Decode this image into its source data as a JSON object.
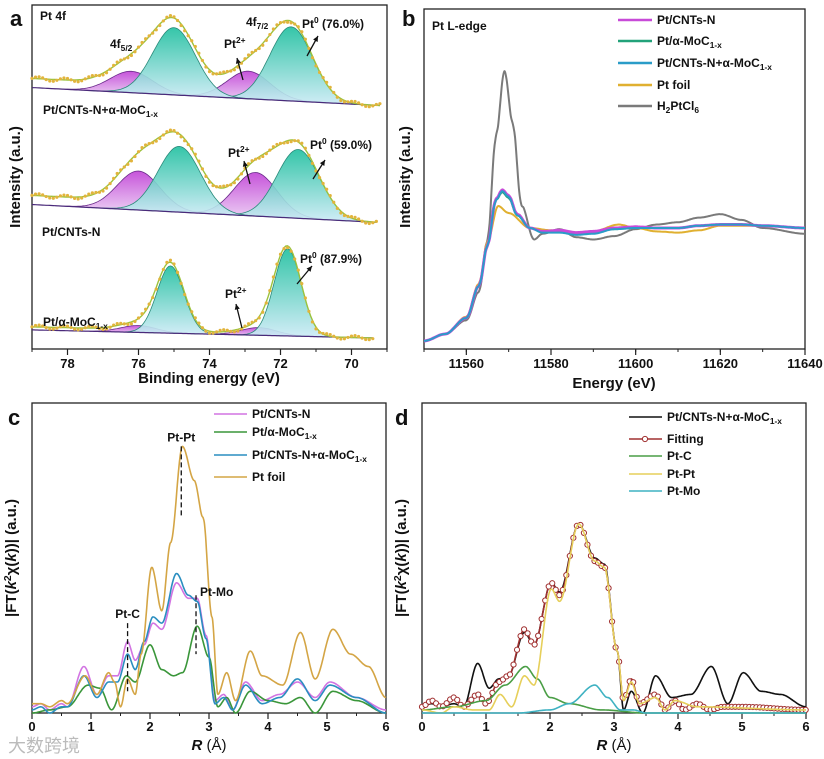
{
  "watermark": "大数跨境",
  "chart_data": [
    {
      "panel": "a",
      "type": "line",
      "title": "Pt 4f",
      "xlabel": "Binding energy (eV)",
      "ylabel": "Intensity (a.u.)",
      "xlim": [
        79,
        69
      ],
      "ylim": [
        -0.2,
        4.3
      ],
      "xticks": [
        78,
        76,
        74,
        72,
        70
      ],
      "peak_labels": {
        "f52": {
          "main": "4f",
          "sub": "5/2"
        },
        "f72": {
          "main": "4f",
          "sub": "7/2"
        }
      },
      "colors": {
        "pt0": "#22c0a8",
        "pt2": "#c24ad6",
        "data": "#e2b43c",
        "envelope": "#9cc23c",
        "baseline": "#4a2a7a"
      },
      "rows": [
        {
          "sample": {
            "main": "Pt/CNTs-N+α-MoC",
            "sub": "1-x"
          },
          "baseline": [
            3.22,
            2.98
          ],
          "shirley": 0.12,
          "xmin": 69.2,
          "pt0": {
            "label": "Pt",
            "sup": "0",
            "pct": " (76.0%)",
            "centers": [
              71.7,
              75.0
            ],
            "heights": [
              0.97,
              0.88
            ],
            "sigma": 0.6
          },
          "pt2": {
            "label": "Pt",
            "sup": "2+",
            "centers": [
              72.9,
              76.2
            ],
            "heights": [
              0.36,
              0.28
            ],
            "sigma": 0.6
          }
        },
        {
          "sample": {
            "main": "Pt/CNTs-N",
            "sub": ""
          },
          "baseline": [
            1.69,
            1.45
          ],
          "shirley": 0.12,
          "xmin": 69.3,
          "pt0": {
            "label": "Pt",
            "sup": "0",
            "pct": " (59.0%)",
            "centers": [
              71.5,
              74.85
            ],
            "heights": [
              0.9,
              0.86
            ],
            "sigma": 0.6
          },
          "pt2": {
            "label": "Pt",
            "sup": "2+",
            "centers": [
              72.7,
              76.0
            ],
            "heights": [
              0.57,
              0.51
            ],
            "sigma": 0.6
          }
        },
        {
          "sample": {
            "main": "Pt/α-MoC",
            "sub": "1-x"
          },
          "baseline": [
            0.05,
            -0.06
          ],
          "shirley": 0.04,
          "xmin": 69.4,
          "pt0": {
            "label": "Pt",
            "sup": "0",
            "pct": " (87.9%)",
            "centers": [
              71.8,
              75.1
            ],
            "heights": [
              1.14,
              0.88
            ],
            "sigma": 0.38
          },
          "pt2": {
            "label": "Pt",
            "sup": "2+",
            "centers": [
              72.6,
              76.0
            ],
            "heights": [
              0.1,
              0.09
            ],
            "sigma": 0.5
          }
        }
      ]
    },
    {
      "panel": "b",
      "type": "line",
      "title": "Pt L-edge",
      "xlabel": "Energy (eV)",
      "ylabel": "Intensity (a.u.)",
      "xlim": [
        11550,
        11640
      ],
      "ylim": [
        -0.05,
        2.9
      ],
      "xticks": [
        11560,
        11580,
        11600,
        11620,
        11640
      ],
      "legend": "top-right",
      "series": [
        {
          "name": {
            "main": "Pt/CNTs-N",
            "sub": ""
          },
          "color": "#c84ad8",
          "x": [
            11550,
            11555,
            11560,
            11563,
            11565,
            11567,
            11568.5,
            11570,
            11572,
            11575,
            11578,
            11582,
            11586,
            11590,
            11595,
            11600,
            11605,
            11610,
            11615,
            11620,
            11625,
            11630,
            11640
          ],
          "y": [
            0.02,
            0.08,
            0.22,
            0.5,
            0.85,
            1.25,
            1.33,
            1.28,
            1.12,
            1.0,
            0.97,
            0.98,
            0.96,
            0.97,
            1.0,
            1.01,
            1.0,
            1.0,
            1.02,
            1.03,
            1.03,
            1.02,
            1.0
          ]
        },
        {
          "name": {
            "main": "Pt/α-MoC",
            "sub": "1-x"
          },
          "color": "#22a27a",
          "x": [
            11550,
            11555,
            11560,
            11563,
            11565,
            11567,
            11568.5,
            11570,
            11572,
            11575,
            11578,
            11582,
            11586,
            11590,
            11595,
            11600,
            11605,
            11610,
            11615,
            11620,
            11625,
            11630,
            11640
          ],
          "y": [
            0.02,
            0.08,
            0.22,
            0.5,
            0.85,
            1.24,
            1.31,
            1.26,
            1.11,
            1.0,
            0.97,
            0.97,
            0.95,
            0.96,
            0.99,
            1.0,
            1.0,
            1.0,
            1.02,
            1.03,
            1.03,
            1.02,
            1.0
          ]
        },
        {
          "name": {
            "main": "Pt/CNTs-N+α-MoC",
            "sub": "1-x"
          },
          "color": "#2a9cc8",
          "x": [
            11550,
            11555,
            11560,
            11563,
            11565,
            11567,
            11568.5,
            11570,
            11572,
            11575,
            11578,
            11582,
            11586,
            11590,
            11595,
            11600,
            11605,
            11610,
            11615,
            11620,
            11625,
            11630,
            11640
          ],
          "y": [
            0.02,
            0.08,
            0.22,
            0.5,
            0.85,
            1.24,
            1.32,
            1.27,
            1.11,
            1.0,
            0.96,
            0.96,
            0.94,
            0.95,
            0.99,
            1.0,
            1.0,
            1.0,
            1.02,
            1.03,
            1.03,
            1.02,
            1.0
          ]
        },
        {
          "name": {
            "main": "Pt foil",
            "sub": ""
          },
          "color": "#e0b030",
          "x": [
            11550,
            11555,
            11560,
            11563,
            11565,
            11567.5,
            11570,
            11575,
            11580,
            11585,
            11590,
            11596,
            11600,
            11605,
            11610,
            11615,
            11620,
            11630,
            11640
          ],
          "y": [
            0.02,
            0.08,
            0.23,
            0.52,
            0.88,
            1.19,
            1.13,
            1.0,
            0.98,
            0.96,
            0.97,
            1.03,
            1.0,
            0.97,
            0.96,
            0.98,
            1.02,
            1.02,
            1.0
          ]
        },
        {
          "name": {
            "main": "H",
            "sub": "2",
            "main2": "PtCl",
            "sub2": "6"
          },
          "color": "#7a7a7a",
          "x": [
            11550,
            11555,
            11560,
            11563,
            11565,
            11567,
            11569,
            11571,
            11573,
            11576,
            11578,
            11582,
            11586,
            11590,
            11595,
            11600,
            11605,
            11610,
            11615,
            11620,
            11625,
            11630,
            11640
          ],
          "y": [
            0.02,
            0.08,
            0.2,
            0.45,
            0.9,
            1.8,
            2.36,
            1.9,
            1.2,
            0.9,
            0.95,
            0.99,
            0.92,
            0.9,
            0.93,
            0.99,
            1.03,
            1.05,
            1.09,
            1.12,
            1.07,
            1.0,
            0.95
          ]
        }
      ]
    },
    {
      "panel": "c",
      "type": "line",
      "xlabel": "R (Å)",
      "ylabel": "|FT(k²χ(k))| (a.u.)",
      "xlim": [
        0,
        6
      ],
      "ylim": [
        0,
        1
      ],
      "xticks": [
        0,
        1,
        2,
        3,
        4,
        5,
        6
      ],
      "legend": "top-right",
      "annotations": [
        {
          "text": "Pt-C",
          "x": 1.62,
          "y_top": 0.29,
          "y_bottom": 0.07
        },
        {
          "text": "Pt-Pt",
          "x": 2.53,
          "y_top": 0.86,
          "y_bottom": 0.63
        },
        {
          "text": "Pt-Mo",
          "x": 2.78,
          "y_top": 0.38,
          "y_bottom": 0.19
        }
      ],
      "series": [
        {
          "name": {
            "main": "Pt/CNTs-N",
            "sub": ""
          },
          "color": "#d274e2",
          "x": [
            0,
            0.15,
            0.3,
            0.5,
            0.6,
            0.88,
            1.1,
            1.3,
            1.45,
            1.62,
            1.75,
            1.9,
            2.05,
            2.2,
            2.45,
            2.65,
            2.8,
            2.95,
            3.1,
            3.25,
            3.4,
            3.62,
            3.9,
            4.2,
            4.5,
            4.8,
            5.05,
            5.5,
            6.0
          ],
          "y": [
            0.02,
            0.03,
            0.01,
            0.03,
            0.02,
            0.15,
            0.06,
            0.12,
            0.12,
            0.23,
            0.17,
            0.22,
            0.29,
            0.27,
            0.42,
            0.37,
            0.37,
            0.25,
            0.04,
            0.06,
            0.01,
            0.1,
            0.04,
            0.06,
            0.1,
            0.05,
            0.1,
            0.05,
            0.01
          ]
        },
        {
          "name": {
            "main": "Pt/α-MoC",
            "sub": "1-x"
          },
          "color": "#3a963a",
          "x": [
            0,
            0.3,
            0.6,
            0.95,
            1.15,
            1.35,
            1.6,
            1.75,
            2.0,
            2.2,
            2.4,
            2.55,
            2.8,
            3.0,
            3.15,
            3.3,
            3.45,
            3.7,
            4.0,
            4.3,
            4.55,
            4.8,
            5.1,
            5.5,
            6.0
          ],
          "y": [
            0.0,
            0.01,
            0.02,
            0.09,
            0.08,
            0.01,
            0.12,
            0.1,
            0.22,
            0.14,
            0.12,
            0.13,
            0.28,
            0.18,
            0.02,
            0.05,
            0.0,
            0.07,
            0.04,
            0.03,
            0.05,
            0.0,
            0.07,
            0.04,
            0.0
          ]
        },
        {
          "name": {
            "main": "Pt/CNTs-N+α-MoC",
            "sub": "1-x"
          },
          "color": "#2a8ec0",
          "x": [
            0,
            0.15,
            0.3,
            0.5,
            0.6,
            0.88,
            1.1,
            1.3,
            1.45,
            1.62,
            1.75,
            1.9,
            2.05,
            2.2,
            2.45,
            2.65,
            2.8,
            2.95,
            3.1,
            3.25,
            3.4,
            3.62,
            3.9,
            4.2,
            4.5,
            4.8,
            5.05,
            5.5,
            6.0
          ],
          "y": [
            0.01,
            0.02,
            0.0,
            0.02,
            0.02,
            0.12,
            0.05,
            0.1,
            0.1,
            0.19,
            0.14,
            0.23,
            0.31,
            0.29,
            0.45,
            0.38,
            0.36,
            0.24,
            0.03,
            0.05,
            0.01,
            0.09,
            0.03,
            0.05,
            0.11,
            0.04,
            0.09,
            0.05,
            0.0
          ]
        },
        {
          "name": {
            "main": "Pt foil",
            "sub": ""
          },
          "color": "#d4a545",
          "x": [
            0,
            0.15,
            0.3,
            0.5,
            0.6,
            0.9,
            1.1,
            1.3,
            1.4,
            1.5,
            1.62,
            1.75,
            1.85,
            2.03,
            2.2,
            2.35,
            2.55,
            2.75,
            2.9,
            3.05,
            3.15,
            3.3,
            3.45,
            3.7,
            3.9,
            4.25,
            4.55,
            4.8,
            5.1,
            5.4,
            5.7,
            6.0
          ],
          "y": [
            0.03,
            0.03,
            0.02,
            0.04,
            0.03,
            0.12,
            0.06,
            0.13,
            0.1,
            0.02,
            0.11,
            0.06,
            0.19,
            0.47,
            0.33,
            0.55,
            0.86,
            0.75,
            0.63,
            0.31,
            0.06,
            0.13,
            0.04,
            0.2,
            0.12,
            0.09,
            0.26,
            0.11,
            0.27,
            0.19,
            0.15,
            0.05
          ]
        }
      ]
    },
    {
      "panel": "d",
      "type": "line",
      "xlabel": "R (Å)",
      "ylabel": "|FT(k²χ(k))| (a.u.)",
      "xlim": [
        0,
        6
      ],
      "ylim": [
        0,
        1
      ],
      "xticks": [
        0,
        1,
        2,
        3,
        4,
        5,
        6
      ],
      "legend": "top-right",
      "series": [
        {
          "name": {
            "main": "Pt/CNTs-N+α-MoC",
            "sub": "1-x"
          },
          "color": "#111111",
          "markers": false,
          "x": [
            0,
            0.15,
            0.3,
            0.5,
            0.65,
            0.87,
            1.05,
            1.2,
            1.35,
            1.6,
            1.75,
            2.02,
            2.15,
            2.45,
            2.7,
            2.85,
            3.05,
            3.15,
            3.27,
            3.45,
            3.65,
            3.9,
            4.2,
            4.52,
            4.78,
            5.02,
            5.3,
            5.6,
            6.0
          ],
          "y": [
            0.02,
            0.03,
            0.02,
            0.03,
            0.02,
            0.16,
            0.08,
            0.11,
            0.12,
            0.26,
            0.22,
            0.42,
            0.39,
            0.61,
            0.5,
            0.48,
            0.2,
            0.01,
            0.07,
            0.0,
            0.12,
            0.05,
            0.06,
            0.15,
            0.03,
            0.13,
            0.07,
            0.06,
            0.02
          ]
        },
        {
          "name": {
            "main": "Fitting",
            "sub": ""
          },
          "color": "#a03030",
          "markers": true,
          "x": [
            0,
            0.15,
            0.3,
            0.5,
            0.65,
            0.87,
            1.0,
            1.2,
            1.35,
            1.6,
            1.75,
            2.02,
            2.15,
            2.45,
            2.7,
            2.85,
            3.05,
            3.15,
            3.27,
            3.4,
            3.65,
            3.8,
            3.95,
            4.1,
            4.3,
            4.5,
            4.7,
            5.0,
            6.0
          ],
          "y": [
            0.02,
            0.04,
            0.02,
            0.05,
            0.02,
            0.06,
            0.03,
            0.1,
            0.12,
            0.27,
            0.22,
            0.42,
            0.38,
            0.61,
            0.49,
            0.47,
            0.2,
            0.04,
            0.11,
            0.03,
            0.06,
            0.01,
            0.04,
            0.01,
            0.03,
            0.01,
            0.02,
            0.02,
            0.01
          ]
        },
        {
          "name": {
            "main": "Pt-C",
            "sub": ""
          },
          "color": "#4a9e46",
          "markers": false,
          "x": [
            0,
            0.5,
            1.0,
            1.3,
            1.62,
            1.8,
            2.0,
            2.3,
            2.8,
            3.5,
            6.0
          ],
          "y": [
            0.01,
            0.02,
            0.04,
            0.09,
            0.15,
            0.11,
            0.05,
            0.03,
            0.01,
            0.0,
            0.0
          ]
        },
        {
          "name": {
            "main": "Pt-Pt",
            "sub": ""
          },
          "color": "#e6cf5a",
          "markers": false,
          "x": [
            0,
            0.3,
            0.5,
            0.8,
            1.05,
            1.22,
            1.4,
            1.6,
            1.75,
            2.02,
            2.15,
            2.45,
            2.7,
            2.85,
            3.05,
            3.15,
            3.27,
            3.4,
            3.65,
            3.8,
            3.95,
            4.3,
            6.0
          ],
          "y": [
            0.01,
            0.0,
            0.02,
            0.01,
            0.01,
            0.06,
            0.02,
            0.12,
            0.09,
            0.4,
            0.36,
            0.61,
            0.49,
            0.47,
            0.2,
            0.04,
            0.1,
            0.03,
            0.05,
            0.01,
            0.04,
            0.02,
            0.01
          ]
        },
        {
          "name": {
            "main": "Pt-Mo",
            "sub": ""
          },
          "color": "#3fb2c2",
          "markers": false,
          "x": [
            0,
            1.5,
            2.0,
            2.3,
            2.7,
            2.9,
            3.1,
            3.3,
            3.5,
            6.0
          ],
          "y": [
            0,
            0.0,
            0.01,
            0.03,
            0.09,
            0.05,
            0.01,
            0.01,
            0.0,
            0
          ]
        }
      ]
    }
  ]
}
